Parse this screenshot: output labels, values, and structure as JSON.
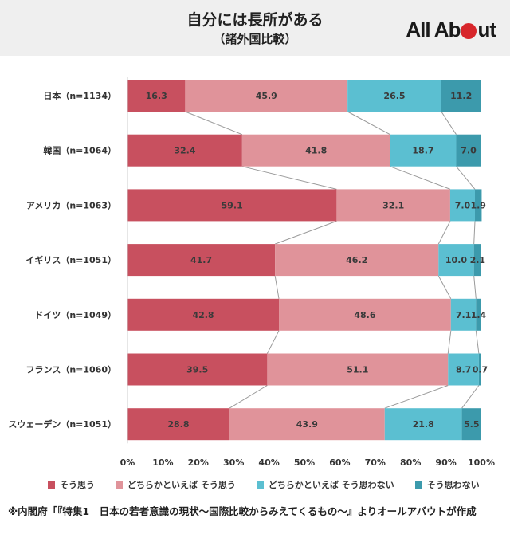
{
  "header": {
    "title": "自分には長所がある",
    "subtitle": "（諸外国比較）",
    "logo_left": "All Ab",
    "logo_right": "ut"
  },
  "chart_data": {
    "type": "bar",
    "orientation": "horizontal",
    "stacked": true,
    "normalized": true,
    "categories": [
      "日本（n=1134）",
      "韓国（n=1064）",
      "アメリカ（n=1063）",
      "イギリス（n=1051）",
      "ドイツ（n=1049）",
      "フランス（n=1060）",
      "スウェーデン（n=1051）"
    ],
    "series": [
      {
        "name": "そう思う",
        "color": "#c8505f",
        "values": [
          16.3,
          32.4,
          59.1,
          41.7,
          42.8,
          39.5,
          28.8
        ]
      },
      {
        "name": "どちらかといえば そう思う",
        "color": "#e0939a",
        "values": [
          45.9,
          41.8,
          32.1,
          46.2,
          48.6,
          51.1,
          43.9
        ]
      },
      {
        "name": "どちらかといえば そう思わない",
        "color": "#5bbfd1",
        "values": [
          26.5,
          18.7,
          7.0,
          10.0,
          7.1,
          8.7,
          21.8
        ]
      },
      {
        "name": "そう思わない",
        "color": "#3c9aac",
        "values": [
          11.2,
          7.0,
          1.9,
          2.1,
          1.4,
          0.7,
          5.5
        ]
      }
    ],
    "data_labels": [
      [
        "16.3",
        "32.4",
        "59.1",
        "41.7",
        "42.8",
        "39.5",
        "28.8"
      ],
      [
        "45.9",
        "41.8",
        "32.1",
        "46.2",
        "48.6",
        "51.1",
        "43.9"
      ],
      [
        "26.5",
        "18.7",
        "7.0",
        "10.0",
        "7.1",
        "8.7",
        "21.8"
      ],
      [
        "11.2",
        "7.0",
        "1.9",
        "2.1",
        "1.4",
        "0.7",
        "5.5"
      ]
    ],
    "x_ticks": [
      "0%",
      "10%",
      "20%",
      "30%",
      "40%",
      "50%",
      "60%",
      "70%",
      "80%",
      "90%",
      "100%"
    ],
    "xlim": [
      0,
      100
    ],
    "connector_lines": true,
    "legend_position": "bottom"
  },
  "note": "※内閣府「『特集1　日本の若者意識の現状～国際比較からみえてくるもの～』よりオールアバウトが作成"
}
